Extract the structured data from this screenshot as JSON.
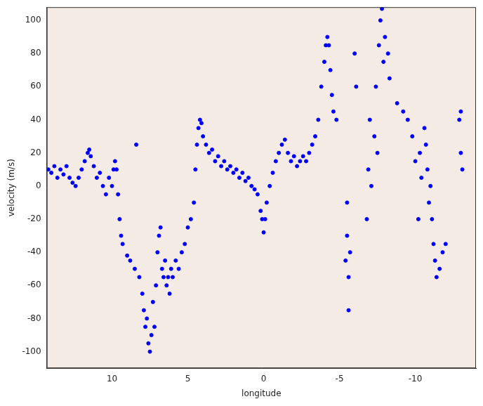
{
  "chart_data": {
    "type": "scatter",
    "x_label": "longitude",
    "y_label": "velocity (m/s)",
    "x": [
      14.2,
      14.0,
      13.8,
      13.6,
      13.4,
      13.2,
      13.0,
      12.8,
      12.6,
      12.4,
      12.2,
      12.0,
      11.8,
      11.6,
      11.5,
      11.4,
      11.2,
      11.0,
      10.8,
      10.6,
      10.4,
      10.2,
      10.0,
      9.9,
      9.8,
      9.7,
      9.6,
      9.5,
      9.4,
      9.3,
      9.0,
      8.8,
      8.5,
      8.4,
      8.2,
      8.0,
      7.9,
      7.8,
      7.7,
      7.6,
      7.5,
      7.4,
      7.3,
      7.2,
      7.1,
      7.0,
      6.9,
      6.8,
      6.7,
      6.6,
      6.5,
      6.4,
      6.3,
      6.2,
      6.1,
      6.0,
      5.8,
      5.6,
      5.4,
      5.2,
      5.0,
      4.8,
      4.6,
      4.5,
      4.4,
      4.3,
      4.2,
      4.1,
      4.0,
      3.8,
      3.6,
      3.4,
      3.2,
      3.0,
      2.8,
      2.6,
      2.4,
      2.2,
      2.0,
      1.8,
      1.6,
      1.4,
      1.2,
      1.0,
      0.8,
      0.6,
      0.4,
      0.2,
      0.1,
      0.0,
      -0.1,
      -0.2,
      -0.4,
      -0.6,
      -0.8,
      -1.0,
      -1.2,
      -1.4,
      -1.6,
      -1.8,
      -2.0,
      -2.2,
      -2.4,
      -2.6,
      -2.8,
      -3.0,
      -3.2,
      -3.4,
      -3.6,
      -3.8,
      -4.0,
      -4.1,
      -4.2,
      -4.3,
      -4.4,
      -4.5,
      -4.6,
      -4.8,
      -5.4,
      -5.5,
      -5.5,
      -5.6,
      -5.6,
      -5.7,
      -6.0,
      -6.1,
      -6.8,
      -6.9,
      -7.0,
      -7.1,
      -7.3,
      -7.4,
      -7.5,
      -7.6,
      -7.7,
      -7.8,
      -7.9,
      -8.0,
      -8.2,
      -8.3,
      -8.8,
      -9.2,
      -9.5,
      -9.8,
      -10.0,
      -10.2,
      -10.3,
      -10.4,
      -10.6,
      -10.7,
      -10.8,
      -10.9,
      -11.0,
      -11.1,
      -11.2,
      -11.3,
      -11.4,
      -11.6,
      -11.8,
      -12.0,
      -12.9,
      -13.0,
      -13.1,
      -13.0
    ],
    "values": [
      10,
      8,
      12,
      5,
      10,
      7,
      12,
      5,
      2,
      0,
      5,
      10,
      15,
      20,
      22,
      18,
      12,
      5,
      8,
      0,
      -5,
      5,
      0,
      10,
      15,
      10,
      -5,
      -20,
      -30,
      -35,
      -42,
      -45,
      -50,
      25,
      -55,
      -65,
      -75,
      -85,
      -80,
      -95,
      -100,
      -90,
      -70,
      -85,
      -60,
      -40,
      -30,
      -25,
      -50,
      -55,
      -45,
      -60,
      -55,
      -65,
      -50,
      -55,
      -45,
      -50,
      -40,
      -35,
      -25,
      -20,
      -10,
      10,
      25,
      35,
      40,
      38,
      30,
      25,
      20,
      22,
      15,
      18,
      12,
      15,
      10,
      12,
      8,
      10,
      5,
      8,
      3,
      5,
      0,
      -2,
      -5,
      -15,
      -20,
      -28,
      -20,
      -10,
      0,
      8,
      15,
      20,
      25,
      28,
      20,
      15,
      18,
      12,
      15,
      18,
      15,
      20,
      25,
      30,
      40,
      60,
      75,
      85,
      90,
      85,
      70,
      55,
      45,
      40,
      -45,
      -10,
      -30,
      -55,
      -75,
      -40,
      80,
      60,
      -20,
      10,
      40,
      0,
      30,
      60,
      20,
      85,
      100,
      107,
      75,
      90,
      80,
      65,
      50,
      45,
      40,
      30,
      15,
      -20,
      20,
      5,
      35,
      25,
      10,
      -10,
      0,
      -20,
      -35,
      -45,
      -55,
      -50,
      -40,
      -35,
      40,
      20,
      10,
      45
    ],
    "color": "#0000ff",
    "marker": "circle",
    "xlim": [
      14.3,
      -14
    ],
    "ylim": [
      -110,
      108
    ],
    "xticks": [
      10,
      5,
      0,
      -5,
      -10
    ],
    "yticks": [
      -100,
      -80,
      -60,
      -40,
      -20,
      0,
      20,
      40,
      60,
      80,
      100
    ],
    "grid": false
  }
}
